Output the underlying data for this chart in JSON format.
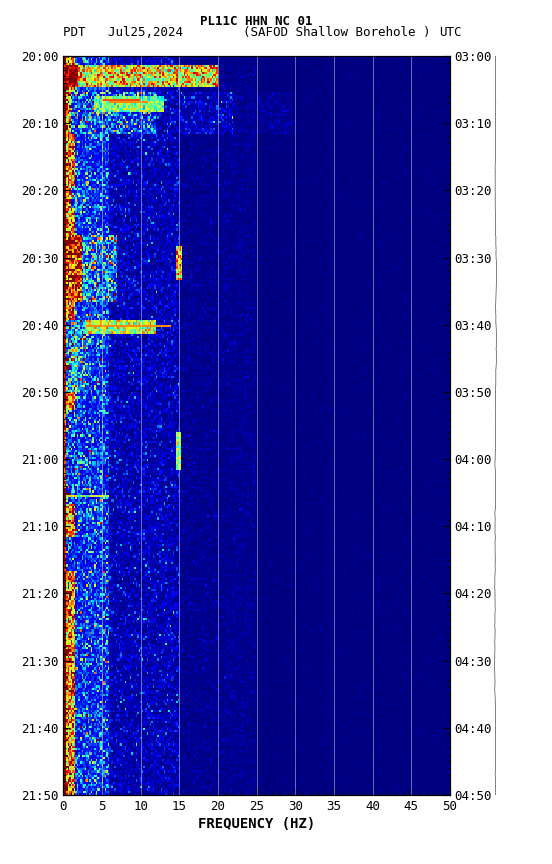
{
  "title_line1": "PL11C HHN NC 01",
  "title_line2_left": "PDT   Jul25,2024",
  "title_line2_center": "(SAFOD Shallow Borehole )",
  "title_line2_right": "UTC",
  "xlabel": "FREQUENCY (HZ)",
  "freq_min": 0,
  "freq_max": 50,
  "ytick_labels_left": [
    "20:00",
    "20:10",
    "20:20",
    "20:30",
    "20:40",
    "20:50",
    "21:00",
    "21:10",
    "21:20",
    "21:30",
    "21:40",
    "21:50"
  ],
  "ytick_labels_right": [
    "03:00",
    "03:10",
    "03:20",
    "03:30",
    "03:40",
    "03:50",
    "04:00",
    "04:10",
    "04:20",
    "04:30",
    "04:40",
    "04:50"
  ],
  "xtick_major": [
    0,
    5,
    10,
    15,
    20,
    25,
    30,
    35,
    40,
    45,
    50
  ],
  "vgrid_lines": [
    5,
    10,
    15,
    20,
    25,
    30,
    35,
    40,
    45
  ],
  "colormap": "jet",
  "fig_bg": "#ffffff",
  "font_size": 9,
  "title_font_size": 9
}
